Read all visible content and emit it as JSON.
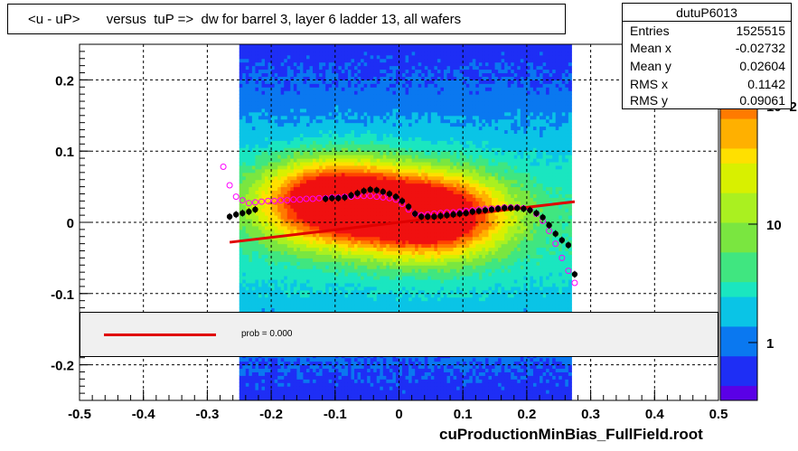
{
  "title": "<u - uP>       versus  tuP =>  dw for barrel 3, layer 6 ladder 13, all wafers",
  "footer": "cuProductionMinBias_FullField.root",
  "stats": {
    "name": "dutuP6013",
    "rows": [
      {
        "label": "Entries",
        "value": "1525515"
      },
      {
        "label": "Mean x",
        "value": "-0.02732"
      },
      {
        "label": "Mean y",
        "value": "0.02604"
      },
      {
        "label": "RMS x",
        "value": "0.1142"
      },
      {
        "label": "RMS y",
        "value": "0.09061"
      }
    ]
  },
  "legend": {
    "text": "prob = 0.000",
    "color": "#e00000"
  },
  "colors": {
    "black_profile": "#000000",
    "magenta_profile": "#ff00ff",
    "fit_line": "#e00000"
  },
  "chart_data": {
    "type": "heatmap",
    "title": "<u - uP>       versus  tuP =>  dw for barrel 3, layer 6 ladder 13, all wafers",
    "xlim": [
      -0.5,
      0.5
    ],
    "ylim": [
      -0.25,
      0.25
    ],
    "x_ticks": [
      "-0.5",
      "-0.4",
      "-0.3",
      "-0.2",
      "-0.1",
      "0",
      "0.1",
      "0.2",
      "0.3",
      "0.4",
      "0.5"
    ],
    "y_ticks": [
      "-0.2",
      "-0.1",
      "0",
      "0.1",
      "0.2"
    ],
    "z_scale": "log",
    "z_ticks": [
      "1",
      "10",
      "10^2"
    ],
    "grid": true,
    "density": {
      "x_range": [
        -0.25,
        0.27
      ],
      "peaks": [
        {
          "x": -0.1,
          "y": 0.03
        },
        {
          "x": 0.05,
          "y": 0.01
        }
      ]
    },
    "series": [
      {
        "marker": "filled-circle",
        "color": "#000000",
        "x": [
          -0.265,
          -0.255,
          -0.245,
          -0.235,
          -0.225,
          -0.115,
          -0.105,
          -0.095,
          -0.085,
          -0.075,
          -0.065,
          -0.055,
          -0.045,
          -0.035,
          -0.025,
          -0.015,
          -0.005,
          0.005,
          0.015,
          0.025,
          0.035,
          0.045,
          0.055,
          0.065,
          0.075,
          0.085,
          0.095,
          0.105,
          0.115,
          0.125,
          0.135,
          0.145,
          0.155,
          0.165,
          0.175,
          0.185,
          0.195,
          0.205,
          0.215,
          0.225,
          0.235,
          0.245,
          0.255,
          0.265,
          0.275
        ],
        "y": [
          0.008,
          0.011,
          0.013,
          0.015,
          0.018,
          0.033,
          0.034,
          0.034,
          0.035,
          0.038,
          0.041,
          0.044,
          0.046,
          0.045,
          0.043,
          0.04,
          0.036,
          0.03,
          0.022,
          0.012,
          0.008,
          0.008,
          0.008,
          0.009,
          0.01,
          0.011,
          0.012,
          0.013,
          0.015,
          0.016,
          0.017,
          0.018,
          0.019,
          0.02,
          0.02,
          0.02,
          0.019,
          0.017,
          0.013,
          0.007,
          -0.004,
          -0.016,
          -0.025,
          -0.032,
          -0.073
        ]
      },
      {
        "marker": "open-circle",
        "color": "#ff00ff",
        "x": [
          -0.275,
          -0.265,
          -0.255,
          -0.245,
          -0.235,
          -0.225,
          -0.215,
          -0.205,
          -0.195,
          -0.185,
          -0.175,
          -0.165,
          -0.155,
          -0.145,
          -0.135,
          -0.125,
          -0.115,
          -0.105,
          -0.095,
          -0.085,
          -0.075,
          -0.065,
          -0.055,
          -0.045,
          -0.035,
          -0.025,
          -0.015,
          -0.005,
          0.005,
          0.015,
          0.025,
          0.035,
          0.045,
          0.055,
          0.065,
          0.075,
          0.085,
          0.095,
          0.105,
          0.115,
          0.125,
          0.135,
          0.145,
          0.155,
          0.165,
          0.175,
          0.185,
          0.195,
          0.205,
          0.215,
          0.225,
          0.235,
          0.245,
          0.255,
          0.265,
          0.275
        ],
        "y": [
          0.078,
          0.052,
          0.036,
          0.031,
          0.027,
          0.028,
          0.029,
          0.03,
          0.03,
          0.031,
          0.031,
          0.032,
          0.032,
          0.033,
          0.033,
          0.034,
          0.034,
          0.035,
          0.035,
          0.036,
          0.036,
          0.037,
          0.037,
          0.037,
          0.036,
          0.035,
          0.034,
          0.032,
          0.026,
          0.018,
          0.012,
          0.01,
          0.011,
          0.012,
          0.013,
          0.014,
          0.014,
          0.015,
          0.016,
          0.017,
          0.018,
          0.019,
          0.019,
          0.02,
          0.021,
          0.021,
          0.021,
          0.02,
          0.018,
          0.012,
          0.002,
          -0.012,
          -0.03,
          -0.05,
          -0.068,
          -0.085
        ]
      },
      {
        "type": "line",
        "color": "#e00000",
        "x": [
          -0.265,
          0.275
        ],
        "y": [
          -0.028,
          0.029
        ]
      }
    ]
  }
}
